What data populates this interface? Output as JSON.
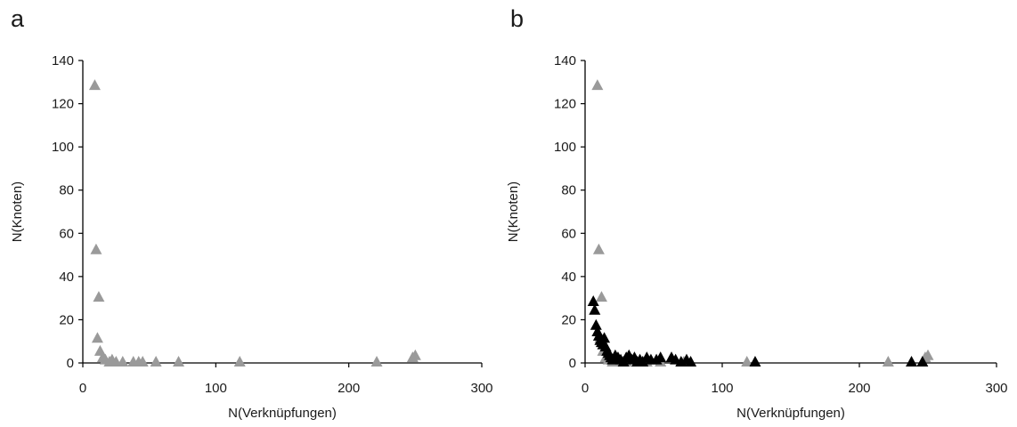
{
  "panels": [
    {
      "letter": "a"
    },
    {
      "letter": "b"
    }
  ],
  "colors": {
    "gray_series": "#9a9a9a",
    "black_series": "#000000",
    "axis": "#000000"
  },
  "chart_data": [
    {
      "type": "scatter",
      "panel": "a",
      "title": "",
      "xlabel": "N(Verknüpfungen)",
      "ylabel": "N(Knoten)",
      "xlim": [
        0,
        300
      ],
      "ylim": [
        0,
        140
      ],
      "x_ticks": [
        0,
        100,
        200,
        300
      ],
      "y_ticks": [
        0,
        20,
        40,
        60,
        80,
        100,
        120,
        140
      ],
      "grid": false,
      "marker": "triangle",
      "series": [
        {
          "color": "#9a9a9a",
          "points": [
            [
              9,
              128
            ],
            [
              10,
              52
            ],
            [
              12,
              30
            ],
            [
              11,
              11
            ],
            [
              13,
              5
            ],
            [
              15,
              2
            ],
            [
              17,
              1
            ],
            [
              20,
              0
            ],
            [
              22,
              1
            ],
            [
              25,
              0
            ],
            [
              30,
              0
            ],
            [
              38,
              0
            ],
            [
              42,
              0
            ],
            [
              45,
              0
            ],
            [
              55,
              0
            ],
            [
              72,
              0
            ],
            [
              118,
              0
            ],
            [
              221,
              0
            ],
            [
              248,
              2
            ],
            [
              250,
              3
            ]
          ]
        }
      ]
    },
    {
      "type": "scatter",
      "panel": "b",
      "title": "",
      "xlabel": "N(Verknüpfungen)",
      "ylabel": "N(Knoten)",
      "xlim": [
        0,
        300
      ],
      "ylim": [
        0,
        140
      ],
      "x_ticks": [
        0,
        100,
        200,
        300
      ],
      "y_ticks": [
        0,
        20,
        40,
        60,
        80,
        100,
        120,
        140
      ],
      "grid": false,
      "marker": "triangle",
      "series": [
        {
          "color": "#9a9a9a",
          "points": [
            [
              9,
              128
            ],
            [
              10,
              52
            ],
            [
              12,
              30
            ],
            [
              11,
              11
            ],
            [
              13,
              5
            ],
            [
              15,
              2
            ],
            [
              17,
              1
            ],
            [
              20,
              0
            ],
            [
              22,
              1
            ],
            [
              25,
              0
            ],
            [
              30,
              0
            ],
            [
              38,
              0
            ],
            [
              42,
              0
            ],
            [
              45,
              0
            ],
            [
              55,
              0
            ],
            [
              72,
              0
            ],
            [
              118,
              0
            ],
            [
              221,
              0
            ],
            [
              248,
              2
            ],
            [
              250,
              3
            ]
          ]
        },
        {
          "color": "#000000",
          "points": [
            [
              6,
              28
            ],
            [
              7,
              24
            ],
            [
              8,
              17
            ],
            [
              9,
              14
            ],
            [
              10,
              12
            ],
            [
              11,
              10
            ],
            [
              12,
              9
            ],
            [
              13,
              8
            ],
            [
              14,
              11
            ],
            [
              15,
              7
            ],
            [
              16,
              5
            ],
            [
              17,
              4
            ],
            [
              18,
              3
            ],
            [
              19,
              2
            ],
            [
              20,
              1
            ],
            [
              22,
              3
            ],
            [
              24,
              2
            ],
            [
              26,
              1
            ],
            [
              28,
              0
            ],
            [
              30,
              2
            ],
            [
              32,
              3
            ],
            [
              34,
              1
            ],
            [
              36,
              2
            ],
            [
              38,
              0
            ],
            [
              40,
              1
            ],
            [
              42,
              0
            ],
            [
              45,
              2
            ],
            [
              48,
              1
            ],
            [
              52,
              1
            ],
            [
              55,
              2
            ],
            [
              63,
              2
            ],
            [
              66,
              1
            ],
            [
              70,
              0
            ],
            [
              74,
              1
            ],
            [
              77,
              0
            ],
            [
              124,
              0
            ],
            [
              238,
              0
            ],
            [
              246,
              0
            ]
          ]
        }
      ]
    }
  ]
}
